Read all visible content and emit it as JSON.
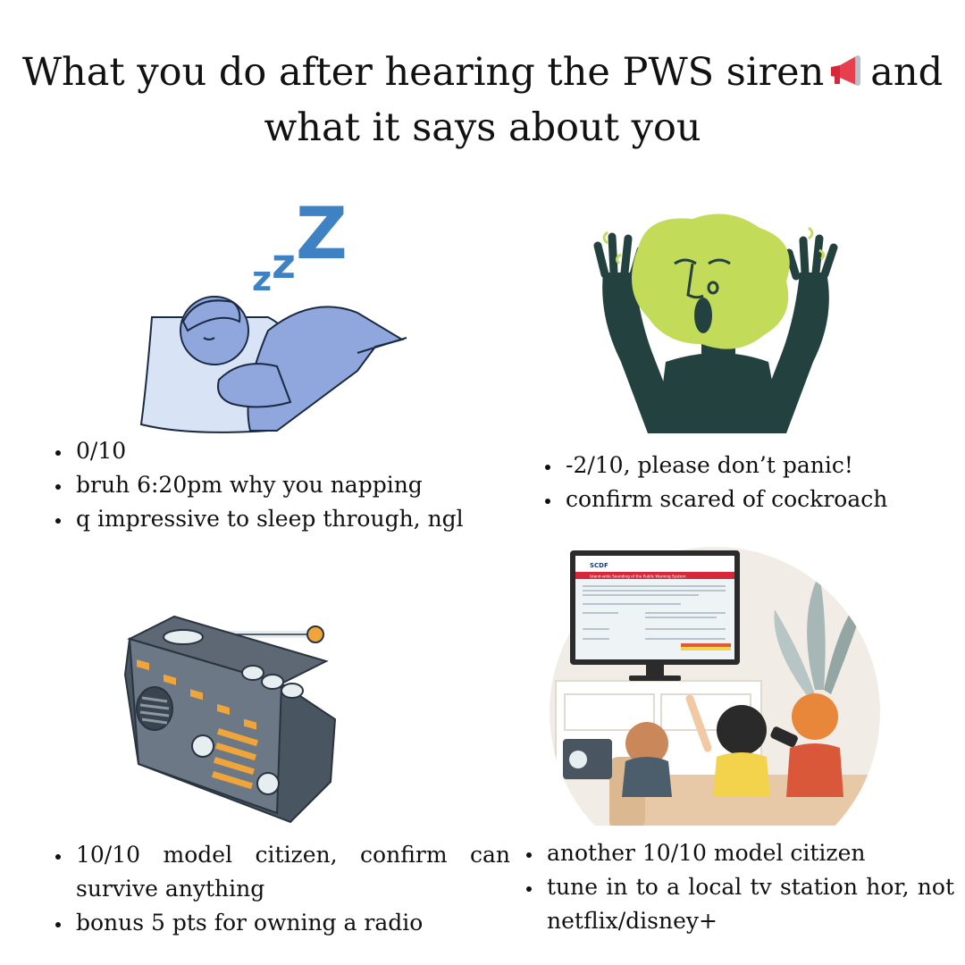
{
  "title": {
    "line1_a": "What you do after hearing the PWS siren",
    "line1_b": "and",
    "line2": "what it says about you",
    "icon": "megaphone-icon"
  },
  "panels": {
    "sleeping": {
      "icon": "sleeping-person-illustration",
      "zzz": "zzZ",
      "notes": [
        "0/10",
        "bruh 6:20pm why you napping",
        "q impressive to sleep through, ngl"
      ]
    },
    "panic": {
      "icon": "panicking-person-illustration",
      "notes": [
        "-2/10, please don’t panic!",
        "confirm scared of cockroach"
      ]
    },
    "radio": {
      "icon": "radio-illustration",
      "notes": [
        "10/10 model citizen, confirm can survive anything",
        "bonus 5 pts for owning a radio"
      ]
    },
    "tv": {
      "icon": "family-watching-tv-illustration",
      "screen_logo": "SCDF",
      "screen_heading": "Island-wide Sounding of the Public Warning System",
      "notes": [
        "another 10/10 model citizen",
        "tune in to a local tv station hor, not netflix/disney+"
      ]
    }
  },
  "colors": {
    "sleep_blue": "#8fa7dd",
    "zzz_blue": "#3f82c4",
    "panic_green": "#c2dc5a",
    "panic_dark": "#23413f",
    "radio_grey": "#5d6874",
    "radio_orange": "#f0a53a",
    "tv_red": "#d7283b"
  }
}
